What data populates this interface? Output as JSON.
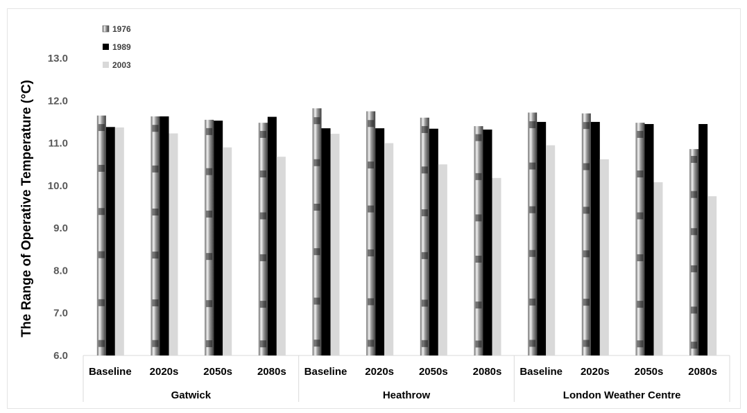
{
  "chart_data": {
    "type": "bar",
    "ylabel": "The Range of Operative Temperature (°C)",
    "ylim": [
      6.0,
      13.0
    ],
    "yticks": [
      "6.0",
      "7.0",
      "8.0",
      "9.0",
      "10.0",
      "11.0",
      "12.0",
      "13.0"
    ],
    "grid": false,
    "legend_position": "top-left",
    "groups": [
      {
        "name": "Gatwick",
        "categories": [
          "Baseline",
          "2020s",
          "2050s",
          "2080s"
        ]
      },
      {
        "name": "Heathrow",
        "categories": [
          "Baseline",
          "2020s",
          "2050s",
          "2080s"
        ]
      },
      {
        "name": "London Weather Centre",
        "categories": [
          "Baseline",
          "2020s",
          "2050s",
          "2080s"
        ]
      }
    ],
    "series": [
      {
        "name": "1976",
        "color": "#8c8c8c",
        "values": [
          11.65,
          11.63,
          11.55,
          11.48,
          11.82,
          11.75,
          11.6,
          11.4,
          11.72,
          11.7,
          11.48,
          10.86
        ]
      },
      {
        "name": "1989",
        "color": "#000000",
        "values": [
          11.38,
          11.63,
          11.53,
          11.62,
          11.35,
          11.35,
          11.34,
          11.32,
          11.5,
          11.5,
          11.45,
          11.45
        ]
      },
      {
        "name": "2003",
        "color": "#d9d9d9",
        "values": [
          11.37,
          11.23,
          10.9,
          10.68,
          11.22,
          11.0,
          10.5,
          10.18,
          10.95,
          10.62,
          10.08,
          9.75
        ]
      }
    ]
  }
}
